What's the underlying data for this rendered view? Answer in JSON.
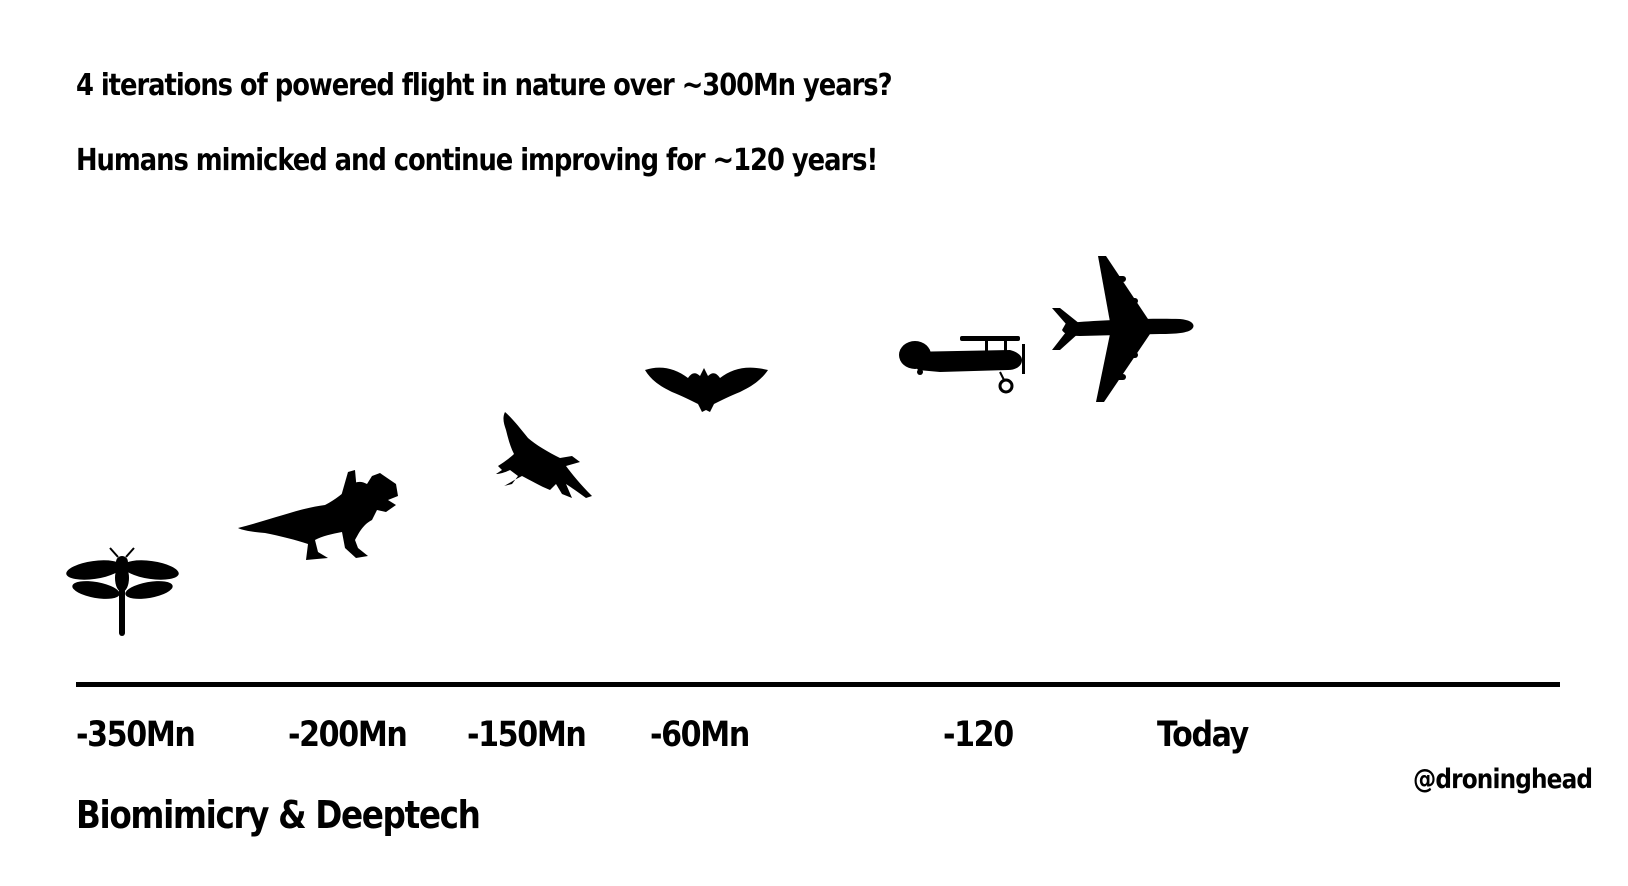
{
  "headline": {
    "line1": "4 iterations of powered flight in nature over ~300Mn years?",
    "line2": "Humans mimicked and continue improving for ~120 years!"
  },
  "timeline": {
    "ticks": [
      "-350Mn",
      "-200Mn",
      "-150Mn",
      "-60Mn",
      "-120",
      "Today"
    ]
  },
  "flyers": [
    {
      "icon": "dragonfly-icon"
    },
    {
      "icon": "pterosaur-icon"
    },
    {
      "icon": "bird-icon"
    },
    {
      "icon": "bat-icon"
    },
    {
      "icon": "biplane-icon"
    },
    {
      "icon": "jet-airplane-icon"
    }
  ],
  "footer": {
    "title": "Biomimicry & Deeptech",
    "handle": "@droninghead"
  },
  "colors": {
    "ink": "#000000",
    "background": "#ffffff"
  }
}
